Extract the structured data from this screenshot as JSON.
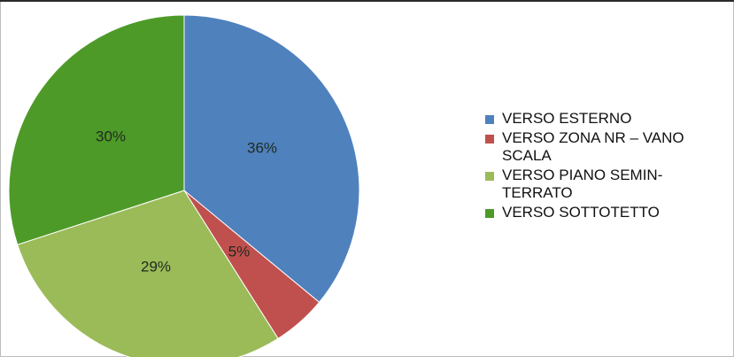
{
  "chart_data": {
    "type": "pie",
    "slices": [
      {
        "name": "VERSO ESTERNO",
        "value": 36,
        "label": "36%",
        "color": "#4f81bd"
      },
      {
        "name": "VERSO ZONA NR – VANO SCALA",
        "value": 5,
        "label": "5%",
        "color": "#c0504d"
      },
      {
        "name": "VERSO PIANO SEMIN-TERRATO",
        "value": 29,
        "label": "29%",
        "color": "#9bbb59"
      },
      {
        "name": "VERSO SOTTOTETTO",
        "value": 30,
        "label": "30%",
        "color": "#4e9a29"
      }
    ],
    "legend_position": "right",
    "start_angle": "12 o'clock",
    "direction": "clockwise"
  },
  "legend": {
    "items": [
      {
        "lines": [
          "VERSO ESTERNO"
        ],
        "color": "#4f81bd"
      },
      {
        "lines": [
          "VERSO ZONA NR – VANO",
          "SCALA"
        ],
        "color": "#c0504d"
      },
      {
        "lines": [
          "VERSO PIANO SEMIN-",
          "TERRATO"
        ],
        "color": "#9bbb59"
      },
      {
        "lines": [
          "VERSO SOTTOTETTO"
        ],
        "color": "#4e9a29"
      }
    ]
  }
}
